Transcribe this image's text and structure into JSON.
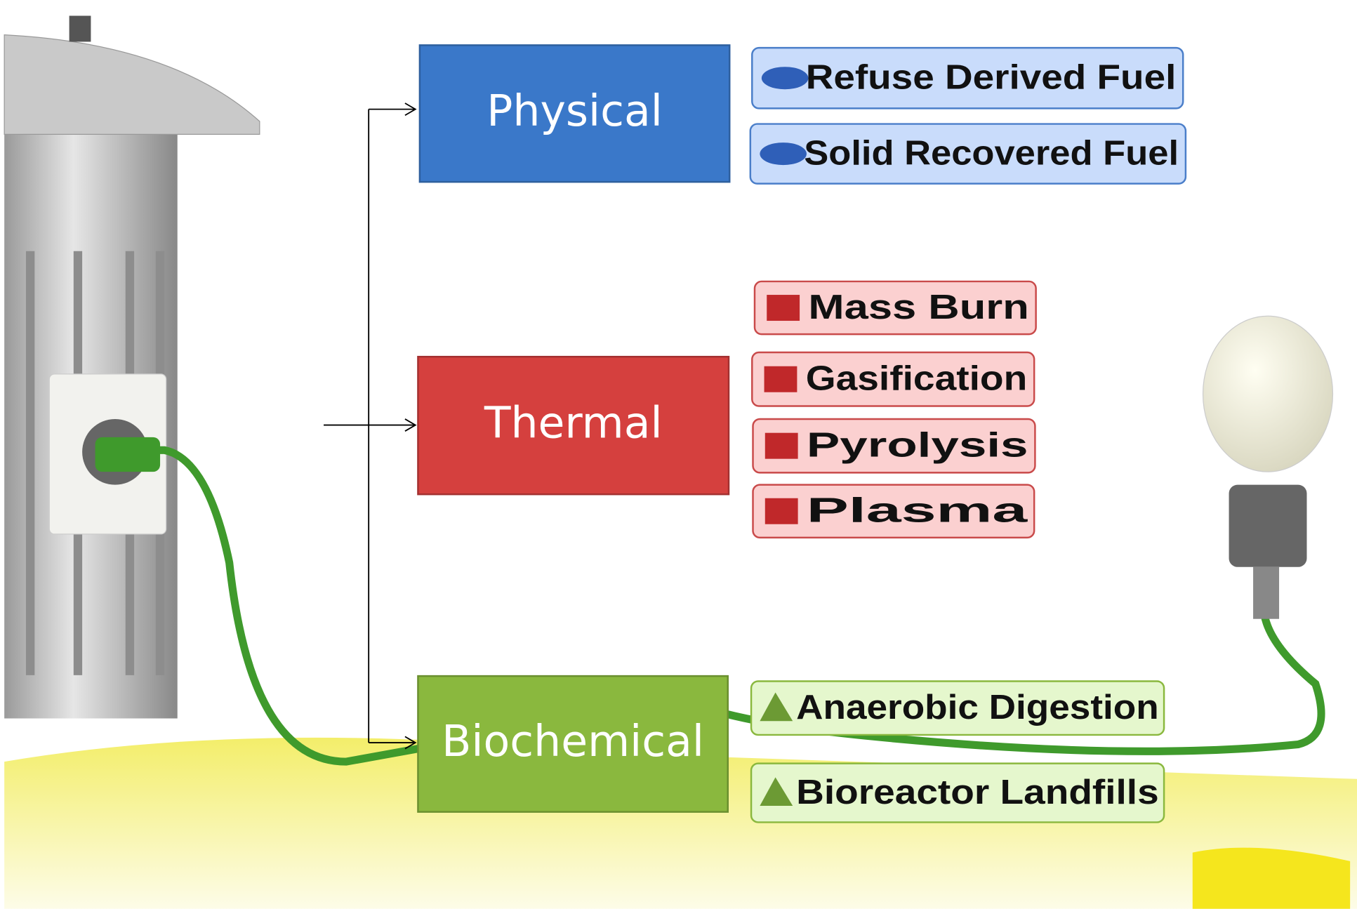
{
  "categories": [
    {
      "label": "Physical",
      "items": [
        "Refuse Derived Fuel",
        "Solid Recovered Fuel"
      ]
    },
    {
      "label": "Thermal",
      "items": [
        "Mass Burn",
        "Gasification",
        "Pyrolysis",
        "Plasma"
      ]
    },
    {
      "label": "Biochemical",
      "items": [
        "Anaerobic Digestion",
        "Bioreactor Landfills"
      ]
    }
  ]
}
